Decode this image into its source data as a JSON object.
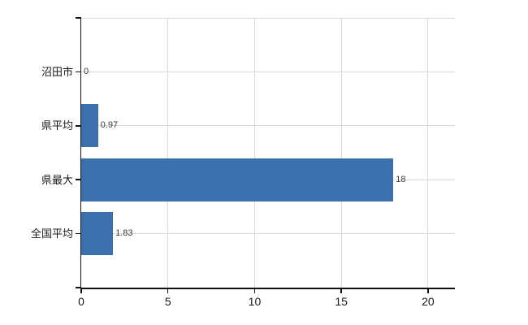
{
  "chart_data": {
    "type": "bar",
    "orientation": "horizontal",
    "title": "",
    "xlabel": "",
    "ylabel": "",
    "categories": [
      "沼田市",
      "県平均",
      "県最大",
      "全国平均"
    ],
    "values": [
      0,
      0.97,
      18,
      1.83
    ],
    "value_labels": [
      "0",
      "0.97",
      "18",
      "1.83"
    ],
    "x_ticks": [
      0,
      5,
      10,
      15,
      20
    ],
    "x_tick_labels": [
      "0",
      "5",
      "10",
      "15",
      "20"
    ],
    "xlim": [
      0,
      21.55
    ],
    "grid": true,
    "legend": false,
    "bar_color": "#3c6fad",
    "gridline_color": "#d9d9d9",
    "axis_color": "#111111",
    "background_color": "#ffffff"
  }
}
